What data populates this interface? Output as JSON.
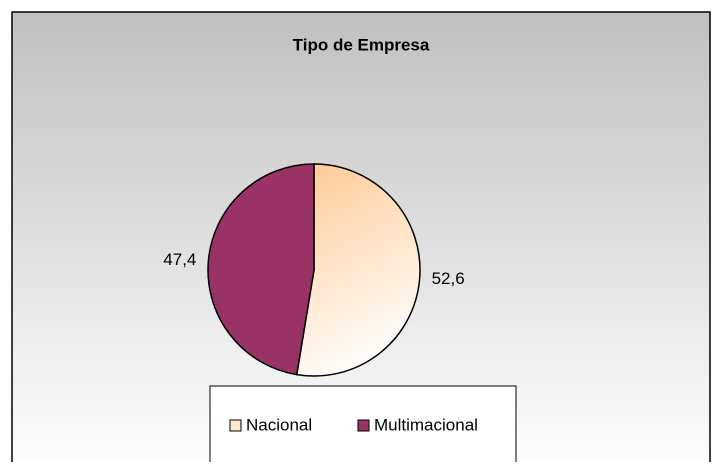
{
  "chart_data": {
    "type": "pie",
    "title": "Tipo de Empresa",
    "categories": [
      "Nacional",
      "Multimacional"
    ],
    "values": [
      52.6,
      47.4
    ],
    "value_labels": [
      "52,6",
      "47,4"
    ],
    "colors": [
      "#ffcc99",
      "#993366"
    ],
    "legend": "bottom"
  }
}
